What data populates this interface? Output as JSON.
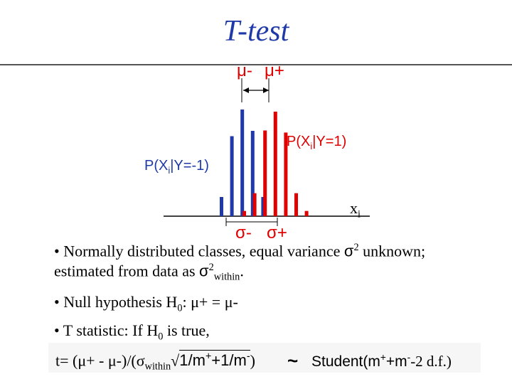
{
  "title": "T-test",
  "diagram": {
    "mu_minus": "μ-",
    "mu_plus": "μ+",
    "sigma_minus": "σ-",
    "sigma_plus": "σ+",
    "label_pos": {
      "pre": "P(X",
      "sub": "i",
      "post": "|Y=1)"
    },
    "label_neg": {
      "pre": "P(X",
      "sub": "i",
      "post": "|Y=-1)"
    },
    "axis_label": {
      "base": "x",
      "sub": "i"
    },
    "colors": {
      "class_neg": "#1f3aa8",
      "class_pos": "#e00000",
      "title": "#1f3aa8"
    },
    "distributions": {
      "neg": [
        0.18,
        0.75,
        1.0,
        0.8,
        0.18
      ],
      "pos": [
        0.05,
        0.22,
        0.82,
        1.0,
        0.8,
        0.22,
        0.05
      ]
    }
  },
  "bullets": {
    "b1": {
      "pre": "• Normally distributed classes, equal variance ",
      "sym": "σ",
      "sup": "2",
      "post": " unknown;"
    },
    "b1_line2": {
      "pre": "estimated from data as ",
      "sym": "σ",
      "sup": "2",
      "sub": "within",
      "post": "."
    },
    "b2": {
      "pre": "• Null hypothesis H",
      "sub": "0",
      "post": ": μ+ = μ-"
    },
    "b3": {
      "pre": "• T statistic: If H",
      "sub": "0",
      "post": " is true,"
    }
  },
  "formula": {
    "lhs": "t= (μ+ - μ-)/(σ",
    "sub": "within",
    "sqrt": "√",
    "rad1": "1/m",
    "sup1": "+",
    "rad2": "+1/m",
    "sup2": "-",
    "close": ")",
    "tilde": "~",
    "student": "Student",
    "arg_open": "(m",
    "arg_sup1": "+",
    "arg_mid": "+m",
    "arg_sup2": "-",
    "arg_end": "-2 d.f.)"
  }
}
